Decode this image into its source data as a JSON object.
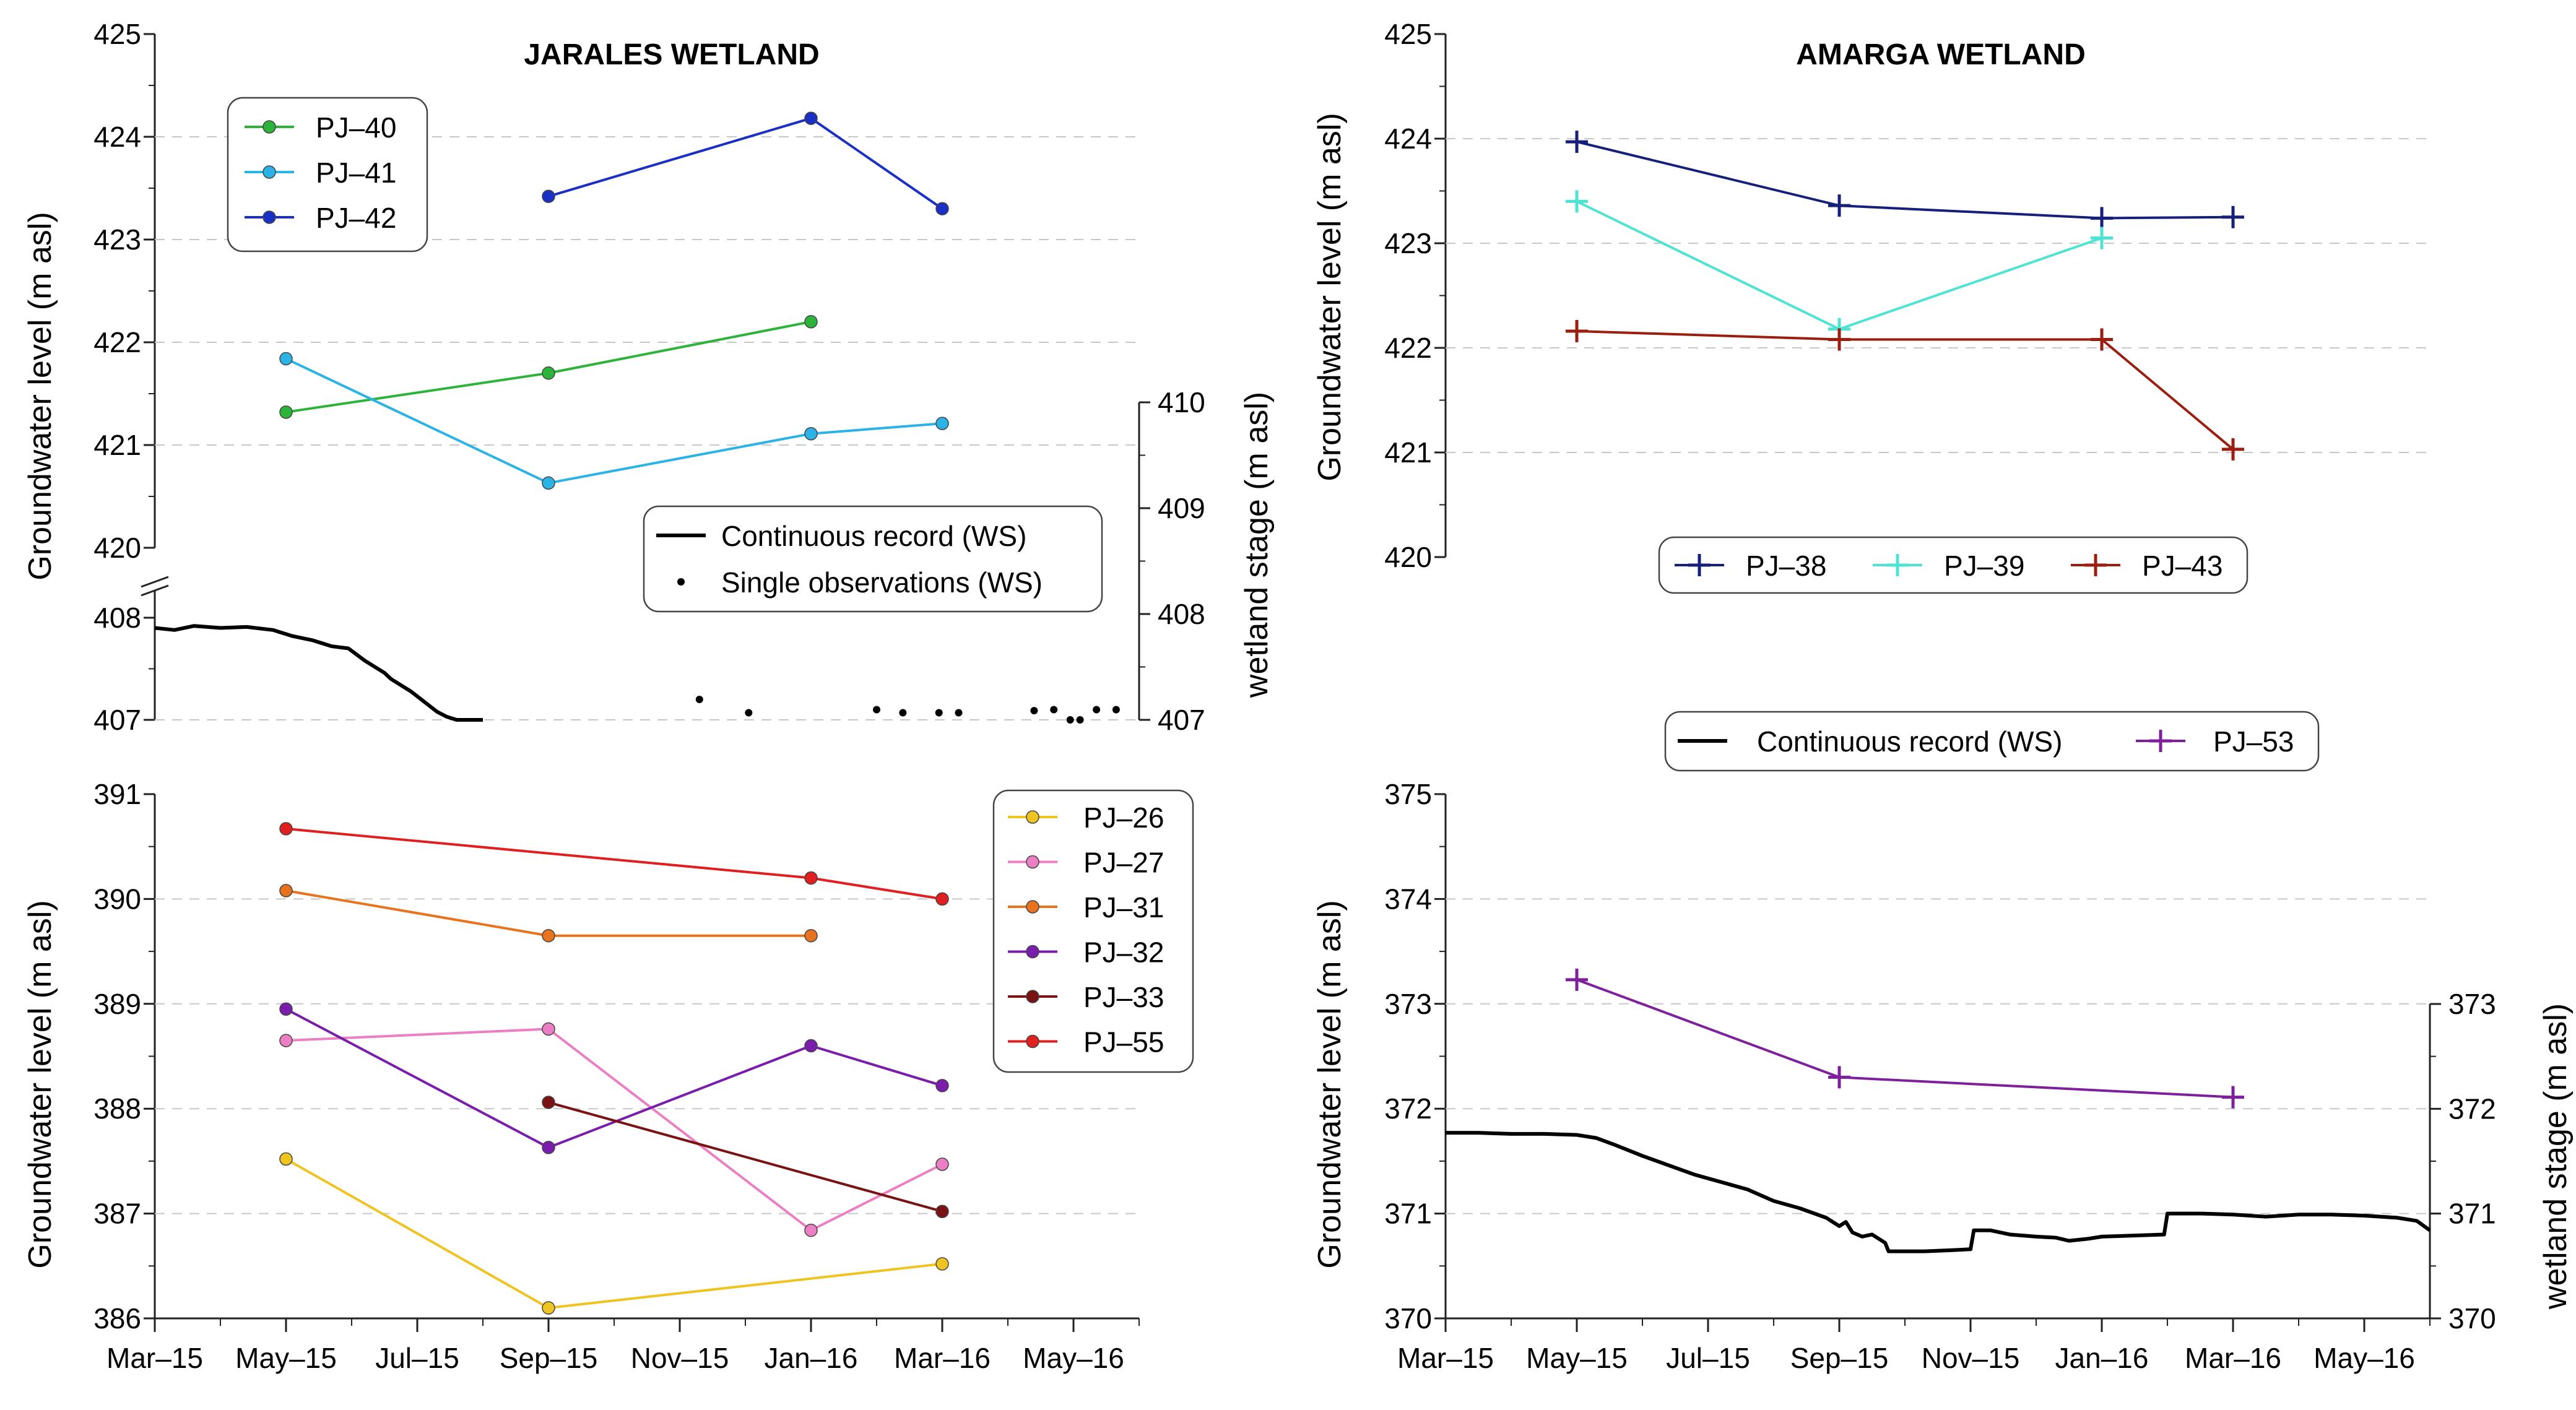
{
  "colors": {
    "PJ-40": "#2db33a",
    "PJ-41": "#2bb3e6",
    "PJ-42": "#1a2fc4",
    "PJ-38": "#16207a",
    "PJ-39": "#4fe3d3",
    "PJ-43": "#9a1f10",
    "PJ-26": "#efc320",
    "PJ-27": "#ec7fc4",
    "PJ-31": "#e8731f",
    "PJ-32": "#7a1cac",
    "PJ-33": "#7a1214",
    "PJ-55": "#e02020",
    "PJ-53": "#7e1f9c",
    "WS": "#000000",
    "grid": "#c8c8c8"
  },
  "chart_data": [
    {
      "id": "jarales_top",
      "type": "line",
      "title": "JARALES WETLAND",
      "ylabel": "Groundwater level (m asl)",
      "y2label": "wetland stage (m asl)",
      "ylim": [
        420,
        425
      ],
      "yticks": [
        "420",
        "421",
        "422",
        "423",
        "424",
        "425"
      ],
      "y2lim_lower": [
        407,
        410
      ],
      "y2ticks": [
        "407",
        "408",
        "409",
        "410"
      ],
      "left_break_ticks": [
        "407",
        "408"
      ],
      "xticks": [
        "Mar–15",
        "May–15",
        "Jul–15",
        "Sep–15",
        "Nov–15",
        "Jan–16",
        "Mar–16",
        "May–16"
      ],
      "series": [
        {
          "name": "PJ–40",
          "color_key": "PJ-40",
          "marker": "dot",
          "x": [
            2,
            6,
            10
          ],
          "y": [
            421.32,
            421.7,
            422.2
          ]
        },
        {
          "name": "PJ–41",
          "color_key": "PJ-41",
          "marker": "dot",
          "x": [
            2,
            6,
            10,
            12
          ],
          "y": [
            421.84,
            420.63,
            421.11,
            421.21
          ]
        },
        {
          "name": "PJ–42",
          "color_key": "PJ-42",
          "marker": "dot",
          "x": [
            6,
            10,
            12
          ],
          "y": [
            423.42,
            424.18,
            423.3
          ]
        }
      ],
      "ws_continuous": {
        "name": "Continuous record (WS)",
        "x": [
          0,
          0.3,
          0.6,
          1.0,
          1.4,
          1.8,
          2.1,
          2.4,
          2.7,
          2.95,
          3.2,
          3.4,
          3.5,
          3.6,
          3.9,
          4.1,
          4.3,
          4.45,
          4.6,
          4.8,
          5.0
        ],
        "y": [
          407.9,
          407.88,
          407.92,
          407.9,
          407.91,
          407.88,
          407.82,
          407.78,
          407.72,
          407.7,
          407.58,
          407.5,
          407.46,
          407.4,
          407.28,
          407.18,
          407.08,
          407.03,
          407.0,
          407.0,
          407.0
        ]
      },
      "ws_single": {
        "name": "Single observations (WS)",
        "x": [
          8.3,
          9.05,
          11.0,
          11.4,
          11.95,
          12.25,
          13.4,
          13.7,
          13.95,
          14.1,
          14.35,
          14.65
        ],
        "y": [
          407.2,
          407.07,
          407.1,
          407.07,
          407.07,
          407.07,
          407.09,
          407.1,
          407.0,
          407.0,
          407.1,
          407.1
        ]
      },
      "legend_series": [
        "PJ–40",
        "PJ–41",
        "PJ–42"
      ],
      "legend_ws": [
        "Continuous record (WS)",
        "Single observations (WS)"
      ]
    },
    {
      "id": "amarga_top",
      "type": "line",
      "title": "AMARGA WETLAND",
      "ylabel": "Groundwater level (m asl)",
      "ylim": [
        420,
        425
      ],
      "yticks": [
        "420",
        "421",
        "422",
        "423",
        "424",
        "425"
      ],
      "series": [
        {
          "name": "PJ–38",
          "color_key": "PJ-38",
          "marker": "plus",
          "x": [
            2,
            6,
            10,
            12
          ],
          "y": [
            423.97,
            423.36,
            423.24,
            423.25
          ]
        },
        {
          "name": "PJ–39",
          "color_key": "PJ-39",
          "marker": "plus",
          "x": [
            2,
            6,
            10
          ],
          "y": [
            423.4,
            422.18,
            423.05
          ]
        },
        {
          "name": "PJ–43",
          "color_key": "PJ-43",
          "marker": "plus",
          "x": [
            2,
            6,
            10,
            12
          ],
          "y": [
            422.16,
            422.08,
            422.08,
            421.03
          ]
        }
      ],
      "legend_series": [
        "PJ–38",
        "PJ–39",
        "PJ–43"
      ]
    },
    {
      "id": "jarales_bottom",
      "type": "line",
      "ylabel": "Groundwater level (m asl)",
      "ylim": [
        386,
        391
      ],
      "yticks": [
        "386",
        "387",
        "388",
        "389",
        "390",
        "391"
      ],
      "xticks": [
        "Mar–15",
        "May–15",
        "Jul–15",
        "Sep–15",
        "Nov–15",
        "Jan–16",
        "Mar–16",
        "May–16"
      ],
      "series": [
        {
          "name": "PJ–26",
          "color_key": "PJ-26",
          "marker": "dot",
          "x": [
            2,
            6,
            12
          ],
          "y": [
            387.52,
            386.1,
            386.52
          ]
        },
        {
          "name": "PJ–27",
          "color_key": "PJ-27",
          "marker": "dot",
          "x": [
            2,
            6,
            10,
            12
          ],
          "y": [
            388.65,
            388.76,
            386.84,
            387.47
          ]
        },
        {
          "name": "PJ–31",
          "color_key": "PJ-31",
          "marker": "dot",
          "x": [
            2,
            6,
            10
          ],
          "y": [
            390.08,
            389.65,
            389.65
          ]
        },
        {
          "name": "PJ–32",
          "color_key": "PJ-32",
          "marker": "dot",
          "x": [
            2,
            6,
            10,
            12
          ],
          "y": [
            388.95,
            387.63,
            388.6,
            388.22
          ]
        },
        {
          "name": "PJ–33",
          "color_key": "PJ-33",
          "marker": "dot",
          "x": [
            6,
            12
          ],
          "y": [
            388.06,
            387.02
          ]
        },
        {
          "name": "PJ–55",
          "color_key": "PJ-55",
          "marker": "dot",
          "x": [
            2,
            10,
            12
          ],
          "y": [
            390.67,
            390.2,
            390.0
          ]
        }
      ],
      "legend_series": [
        "PJ–26",
        "PJ–27",
        "PJ–31",
        "PJ–32",
        "PJ–33",
        "PJ–55"
      ]
    },
    {
      "id": "amarga_bottom",
      "type": "line",
      "ylabel": "Groundwater level (m asl)",
      "y2label": "wetland stage (m asl)",
      "ylim": [
        370,
        375
      ],
      "yticks": [
        "370",
        "371",
        "372",
        "373",
        "374",
        "375"
      ],
      "y2ticks": [
        "370",
        "371",
        "372",
        "373"
      ],
      "xticks": [
        "Mar–15",
        "May–15",
        "Jul–15",
        "Sep–15",
        "Nov–15",
        "Jan–16",
        "Mar–16",
        "May–16"
      ],
      "series": [
        {
          "name": "PJ–53",
          "color_key": "PJ-53",
          "marker": "plus",
          "x": [
            2,
            6,
            12
          ],
          "y": [
            373.23,
            372.3,
            372.11
          ]
        }
      ],
      "ws_continuous": {
        "name": "Continuous record (WS)",
        "x": [
          0,
          0.5,
          1.0,
          1.5,
          2.0,
          2.3,
          2.6,
          3.0,
          3.4,
          3.8,
          4.2,
          4.6,
          5.0,
          5.4,
          5.8,
          6.0,
          6.1,
          6.2,
          6.35,
          6.5,
          6.7,
          6.75,
          7.0,
          7.3,
          7.7,
          8.0,
          8.05,
          8.3,
          8.6,
          9.0,
          9.3,
          9.5,
          9.8,
          10.0,
          10.5,
          10.95,
          11.0,
          11.5,
          12.0,
          12.5,
          13.0,
          13.5,
          14.0,
          14.5,
          14.8,
          15.0
        ],
        "y": [
          371.77,
          371.77,
          371.76,
          371.76,
          371.75,
          371.72,
          371.65,
          371.55,
          371.46,
          371.37,
          371.3,
          371.23,
          371.12,
          371.05,
          370.96,
          370.88,
          370.92,
          370.82,
          370.78,
          370.8,
          370.72,
          370.64,
          370.64,
          370.64,
          370.65,
          370.66,
          370.84,
          370.84,
          370.8,
          370.78,
          370.77,
          370.74,
          370.76,
          370.78,
          370.79,
          370.8,
          371.0,
          371.0,
          370.99,
          370.97,
          370.99,
          370.99,
          370.98,
          370.96,
          370.93,
          370.84
        ]
      },
      "legend_series": [
        "Continuous record (WS)",
        "PJ–53"
      ]
    }
  ]
}
